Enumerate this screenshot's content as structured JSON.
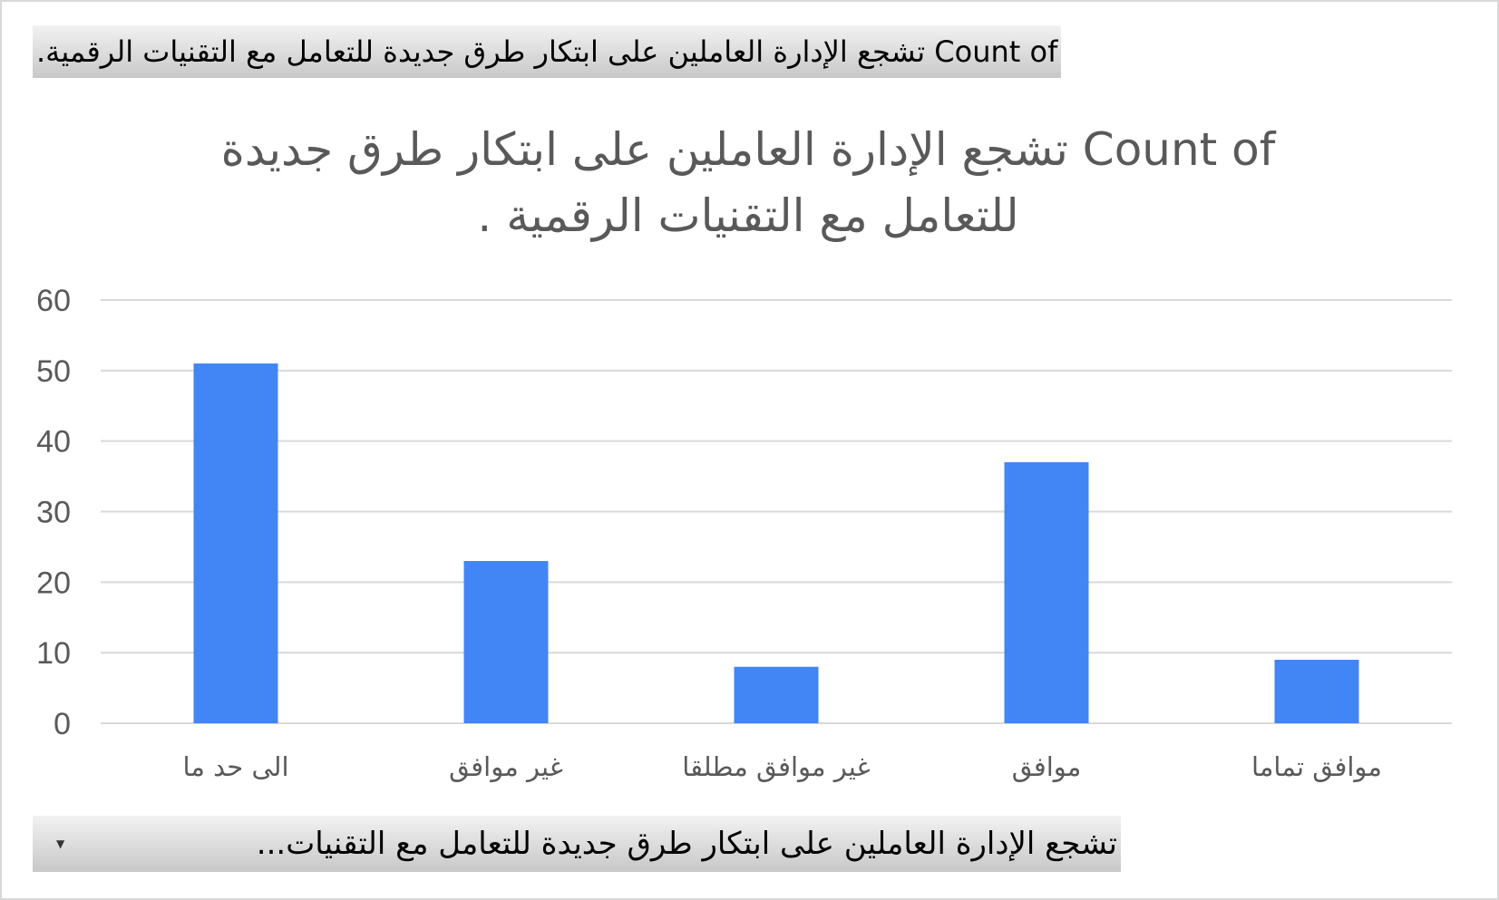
{
  "value_field": {
    "label": "Count of  تشجع الإدارة العاملين على ابتكار طرق جديدة للتعامل مع التقنيات الرقمية."
  },
  "axis_field": {
    "label": "تشجع الإدارة العاملين على ابتكار طرق جديدة للتعامل مع التقنيات...",
    "dropdown_icon": "dropdown-arrow-icon"
  },
  "chart_data": {
    "type": "bar",
    "title_lines": [
      "Count of  تشجع الإدارة العاملين على ابتكار طرق جديدة",
      "للتعامل مع التقنيات الرقمية ."
    ],
    "categories": [
      "الى حد ما",
      "غير موافق",
      "غير موافق مطلقا",
      "موافق",
      "موافق تماما"
    ],
    "values": [
      51,
      23,
      8,
      37,
      9
    ],
    "ylim": [
      0,
      60
    ],
    "yticks": [
      0,
      10,
      20,
      30,
      40,
      50,
      60
    ],
    "grid": true,
    "bar_color": "#4285f4",
    "grid_color": "#d9d9d9"
  }
}
